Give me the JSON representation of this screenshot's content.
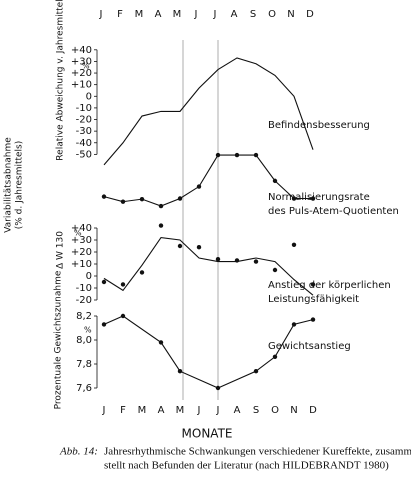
{
  "months": [
    "J",
    "F",
    "M",
    "A",
    "M",
    "J",
    "J",
    "A",
    "S",
    "O",
    "N",
    "D"
  ],
  "x_label": "MONATE",
  "caption": {
    "label": "Abb. 14:",
    "lines": [
      "Jahresrhythmische Schwankungen verschiedener Kureffekte, zusammenge-",
      "stellt nach Befunden der Literatur (nach HILDEBRANDT 1980)"
    ]
  },
  "chart_data": [
    {
      "type": "line",
      "title": [
        "Befindensbesserung"
      ],
      "ylabel": "Relative Abweichung v. Jahresmittel",
      "unit": "%",
      "ylim": [
        -60,
        45
      ],
      "yticks": [
        {
          "value": 40,
          "label": "+40"
        },
        {
          "value": 30,
          "label": "+30"
        },
        {
          "value": 20,
          "label": "+20"
        },
        {
          "value": 10,
          "label": "+10"
        },
        0,
        -10,
        -20,
        -30,
        -40,
        -50
      ],
      "series": [
        {
          "x": [
            1,
            2,
            3,
            4,
            5,
            6,
            7,
            8,
            9,
            10,
            11,
            12
          ],
          "values": [
            -59,
            -40,
            -17,
            -13,
            -13,
            7,
            23,
            33,
            28,
            18,
            0,
            -46
          ],
          "markers": false
        }
      ]
    },
    {
      "type": "line",
      "title": [
        "Normalisierungsrate",
        "des Puls-Atem-Quotienten"
      ],
      "ylabel": [
        "Variabilitätsabnahme",
        "(% d. Jahresmittels)"
      ],
      "ylim": [
        0,
        100
      ],
      "series": [
        {
          "x": [
            1,
            2,
            3,
            4,
            5,
            6,
            7,
            8,
            9,
            10,
            11,
            12
          ],
          "values": [
            26,
            18,
            22,
            11,
            23,
            42,
            92,
            92,
            92,
            51,
            23,
            23
          ],
          "markers": true
        }
      ]
    },
    {
      "type": "line",
      "title": [
        "Anstieg der körperlichen",
        "Leistungsfähigkeit"
      ],
      "ylabel": "Δ W 130",
      "unit": "%",
      "ylim": [
        -25,
        45
      ],
      "yticks": [
        {
          "value": 40,
          "label": "+40"
        },
        {
          "value": 30,
          "label": "+30"
        },
        {
          "value": 20,
          "label": "+20"
        },
        {
          "value": 10,
          "label": "+10"
        },
        0,
        -10,
        -20
      ],
      "series": [
        {
          "x": [
            1,
            2,
            3,
            4,
            5,
            6,
            7,
            8,
            9,
            10,
            11,
            12
          ],
          "values": [
            -2,
            -12,
            9,
            32,
            30,
            15,
            12,
            12,
            15,
            12,
            -3,
            -16
          ],
          "markers": false
        },
        {
          "x": [
            1,
            2,
            3,
            4,
            5,
            6,
            7,
            8,
            9,
            10,
            11,
            12
          ],
          "values": [
            -5,
            -7,
            3,
            42,
            25,
            24,
            14,
            13,
            12,
            5,
            26,
            -7
          ],
          "markers": true,
          "line": false
        }
      ]
    },
    {
      "type": "line",
      "title": [
        "Gewichtsanstieg"
      ],
      "ylabel": "Prozentuale Gewichtszunahme",
      "unit": "%",
      "ylim": [
        7.55,
        8.25
      ],
      "yticks": [
        {
          "value": 8.2,
          "label": "8,2"
        },
        {
          "value": 8.0,
          "label": "8,0"
        },
        {
          "value": 7.8,
          "label": "7,8"
        },
        {
          "value": 7.6,
          "label": "7,6"
        }
      ],
      "series": [
        {
          "x": [
            1,
            2,
            4,
            5,
            7,
            9,
            10,
            11,
            12
          ],
          "values": [
            8.13,
            8.2,
            7.98,
            7.74,
            7.6,
            7.74,
            7.86,
            8.13,
            8.17
          ],
          "markers": true
        }
      ]
    }
  ]
}
